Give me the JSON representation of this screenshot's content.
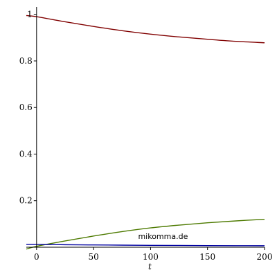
{
  "chart_data": {
    "type": "line",
    "title": "",
    "xlabel": "t",
    "ylabel": "",
    "xlim": [
      -9,
      200
    ],
    "ylim": [
      0,
      1.02
    ],
    "grid": false,
    "x_ticks": [
      0,
      50,
      100,
      150,
      200
    ],
    "x_tick_labels": [
      "0",
      "50",
      "100",
      "150",
      "200"
    ],
    "y_ticks": [
      0.2,
      0.4,
      0.6,
      0.8,
      1
    ],
    "y_tick_labels": [
      "0.2",
      "0.4",
      "0.6",
      "0.8",
      "1"
    ],
    "series": [
      {
        "color": "#800000",
        "x": [
          -9,
          0,
          25,
          50,
          75,
          100,
          125,
          150,
          175,
          200
        ],
        "y": [
          0.995,
          0.99,
          0.968,
          0.948,
          0.93,
          0.915,
          0.903,
          0.893,
          0.884,
          0.878
        ]
      },
      {
        "color": "#4d7a00",
        "x": [
          -9,
          0,
          25,
          50,
          75,
          100,
          125,
          150,
          175,
          200
        ],
        "y": [
          -0.008,
          0.004,
          0.027,
          0.048,
          0.067,
          0.083,
          0.095,
          0.105,
          0.113,
          0.12
        ]
      },
      {
        "color": "#0000a0",
        "x": [
          -9,
          0,
          25,
          50,
          75,
          100,
          125,
          150,
          175,
          200
        ],
        "y": [
          0.012,
          0.012,
          0.0108,
          0.0098,
          0.0089,
          0.0081,
          0.0075,
          0.007,
          0.0066,
          0.0063
        ]
      }
    ],
    "annotations": [
      "mikomma.de"
    ]
  }
}
